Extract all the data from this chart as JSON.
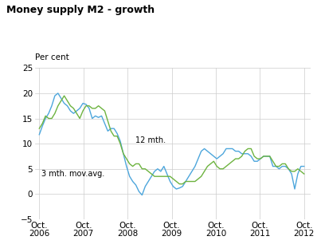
{
  "title": "Money supply M2 - growth",
  "ylabel": "Per cent",
  "ylim": [
    -5,
    25
  ],
  "yticks": [
    -5,
    0,
    5,
    10,
    15,
    20,
    25
  ],
  "color_12mth": "#4da6dc",
  "color_3mth": "#6db33f",
  "label_12mth": "12 mth.",
  "label_3mth": "3 mth. mov.avg.",
  "xtick_labels": [
    "Oct.\n2006",
    "Oct.\n2007",
    "Oct.\n2008",
    "Oct.\n2009",
    "Oct.\n2010",
    "Oct.\n2011",
    "Oct.\n2012"
  ],
  "series_12mth": [
    11.8,
    13.5,
    15.0,
    16.0,
    17.5,
    19.5,
    20.0,
    19.0,
    18.0,
    17.5,
    16.5,
    16.0,
    16.5,
    17.0,
    18.0,
    17.8,
    17.0,
    15.0,
    15.5,
    15.2,
    15.5,
    14.0,
    12.5,
    13.0,
    13.0,
    12.0,
    10.5,
    8.0,
    5.5,
    3.5,
    2.5,
    1.8,
    0.5,
    -0.2,
    1.5,
    2.5,
    3.5,
    4.5,
    5.0,
    4.5,
    5.5,
    4.0,
    2.5,
    1.5,
    1.0,
    1.2,
    1.5,
    2.5,
    3.5,
    4.5,
    5.5,
    7.0,
    8.5,
    9.0,
    8.5,
    8.0,
    7.5,
    7.0,
    7.5,
    8.0,
    9.0,
    9.0,
    9.0,
    8.5,
    8.5,
    8.0,
    8.0,
    8.0,
    7.5,
    6.5,
    6.5,
    7.0,
    7.5,
    7.5,
    7.5,
    5.5,
    5.5,
    5.0,
    5.5,
    5.5,
    5.0,
    4.0,
    1.0,
    4.0,
    5.5,
    5.5
  ],
  "series_3mth": [
    13.0,
    14.0,
    15.5,
    15.0,
    15.0,
    16.0,
    17.5,
    18.5,
    19.5,
    18.5,
    17.5,
    17.0,
    16.0,
    15.0,
    16.5,
    17.5,
    17.5,
    17.0,
    17.0,
    17.5,
    17.0,
    16.5,
    14.5,
    12.5,
    11.5,
    11.5,
    10.0,
    8.0,
    7.0,
    6.0,
    5.5,
    6.0,
    6.0,
    5.0,
    5.0,
    4.5,
    4.0,
    3.5,
    3.5,
    3.5,
    3.5,
    3.5,
    3.5,
    3.0,
    2.5,
    2.0,
    2.0,
    2.5,
    2.5,
    2.5,
    2.5,
    3.0,
    3.5,
    4.5,
    5.5,
    6.0,
    6.5,
    5.5,
    5.0,
    5.0,
    5.5,
    6.0,
    6.5,
    7.0,
    7.0,
    7.5,
    8.5,
    9.0,
    9.0,
    7.5,
    7.0,
    7.0,
    7.5,
    7.5,
    7.5,
    6.5,
    5.5,
    5.5,
    6.0,
    6.0,
    5.0,
    4.5,
    4.5,
    5.0,
    4.5,
    4.0
  ]
}
